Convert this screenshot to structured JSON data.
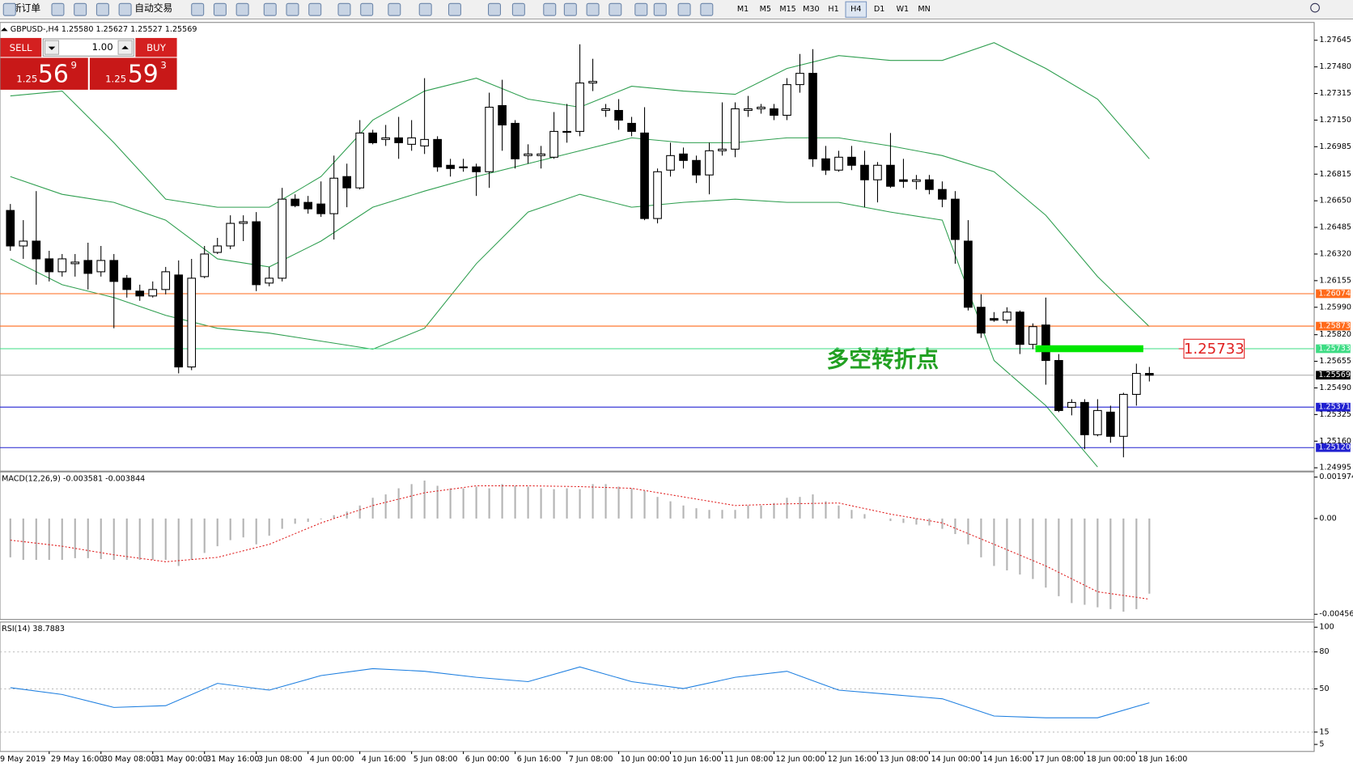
{
  "toolbar": {
    "new_order": "新订单",
    "auto_trading": "自动交易",
    "timeframes": [
      "M1",
      "M5",
      "M15",
      "M30",
      "H1",
      "H4",
      "D1",
      "W1",
      "MN"
    ],
    "active_timeframe": "H4"
  },
  "chart_header": "GBPUSD-,H4  1.25580 1.25627 1.25527 1.25569",
  "trade_panel": {
    "sell": "SELL",
    "buy": "BUY",
    "lots": "1.00",
    "sell_price": {
      "big": "1.25",
      "pips": "56",
      "point": "9"
    },
    "buy_price": {
      "big": "1.25",
      "pips": "59",
      "point": "3"
    }
  },
  "time_labels": [
    "9 May 2019",
    "29 May 16:00",
    "30 May 08:00",
    "31 May 00:00",
    "31 May 16:00",
    "3 Jun 08:00",
    "4 Jun 00:00",
    "4 Jun 16:00",
    "5 Jun 08:00",
    "6 Jun 00:00",
    "6 Jun 16:00",
    "7 Jun 08:00",
    "10 Jun 00:00",
    "10 Jun 16:00",
    "11 Jun 08:00",
    "12 Jun 00:00",
    "12 Jun 16:00",
    "13 Jun 08:00",
    "14 Jun 00:00",
    "14 Jun 16:00",
    "17 Jun 08:00",
    "18 Jun 00:00",
    "18 Jun 16:00"
  ],
  "chart_data": [
    {
      "type": "candlestick",
      "open": [
        1.2659,
        1.2637,
        1.264,
        1.2629,
        1.2621,
        1.2626,
        1.2628,
        1.2621,
        1.2628,
        1.2617,
        1.2609,
        1.2606,
        1.261,
        1.2619,
        1.2562,
        1.2618,
        1.2633,
        1.2637,
        1.2651,
        1.2652,
        1.2614,
        1.2617,
        1.2666,
        1.2664,
        1.2663,
        1.2657,
        1.268,
        1.2673,
        1.2707,
        1.2703,
        1.2704,
        1.27,
        1.2699,
        1.2703,
        1.2687,
        1.2686,
        1.2686,
        1.2683,
        1.2724,
        1.2713,
        1.2693,
        1.2693,
        1.2692,
        1.2708,
        1.2708,
        1.2738,
        1.2721,
        1.2721,
        1.2713,
        1.2707,
        1.2654,
        1.2684,
        1.2694,
        1.269,
        1.2681,
        1.2696,
        1.2697,
        1.2721,
        1.2722,
        1.2722,
        1.2718,
        1.2737,
        1.2744,
        1.2691,
        1.2684,
        1.2692,
        1.2687,
        1.2678,
        1.2687,
        1.2678,
        1.2677,
        1.2678,
        1.2672,
        1.2666,
        1.264,
        1.2599,
        1.2592,
        1.2591,
        1.2596,
        1.2576,
        1.2588,
        1.2566,
        1.2537,
        1.254,
        1.252,
        1.2534,
        1.2519,
        1.2545,
        1.2558
      ],
      "high": [
        1.2663,
        1.2653,
        1.2671,
        1.2634,
        1.2632,
        1.2632,
        1.2639,
        1.2637,
        1.2632,
        1.2619,
        1.2613,
        1.2615,
        1.2624,
        1.2628,
        1.2629,
        1.2637,
        1.2642,
        1.2656,
        1.2656,
        1.2658,
        1.2624,
        1.2673,
        1.2669,
        1.2668,
        1.2677,
        1.2693,
        1.2688,
        1.2715,
        1.2709,
        1.2712,
        1.2717,
        1.2715,
        1.2741,
        1.2705,
        1.2691,
        1.2691,
        1.2688,
        1.2732,
        1.274,
        1.2715,
        1.27,
        1.2699,
        1.272,
        1.2725,
        1.2762,
        1.2753,
        1.2725,
        1.2728,
        1.2717,
        1.2723,
        1.2685,
        1.2701,
        1.2698,
        1.2693,
        1.2701,
        1.2726,
        1.2726,
        1.273,
        1.2725,
        1.2725,
        1.2741,
        1.2756,
        1.2759,
        1.2699,
        1.2696,
        1.2699,
        1.2696,
        1.2689,
        1.2707,
        1.2691,
        1.2681,
        1.2681,
        1.2677,
        1.2671,
        1.2653,
        1.2607,
        1.2596,
        1.2599,
        1.2597,
        1.2589,
        1.2605,
        1.257,
        1.2542,
        1.2542,
        1.2542,
        1.2538,
        1.2546,
        1.2564,
        1.2562
      ],
      "low": [
        1.2634,
        1.2629,
        1.2613,
        1.2615,
        1.2618,
        1.2618,
        1.261,
        1.2618,
        1.2586,
        1.2605,
        1.2603,
        1.2605,
        1.2607,
        1.2558,
        1.256,
        1.2617,
        1.2632,
        1.2635,
        1.264,
        1.2609,
        1.2612,
        1.2615,
        1.2661,
        1.2657,
        1.2655,
        1.2641,
        1.2661,
        1.2672,
        1.27,
        1.2699,
        1.2691,
        1.2696,
        1.2694,
        1.2683,
        1.268,
        1.2683,
        1.2668,
        1.2673,
        1.2696,
        1.2685,
        1.2688,
        1.2685,
        1.2691,
        1.2701,
        1.2705,
        1.2733,
        1.2717,
        1.2709,
        1.2705,
        1.2653,
        1.2651,
        1.268,
        1.2685,
        1.2676,
        1.2669,
        1.2693,
        1.2692,
        1.2717,
        1.2719,
        1.2715,
        1.2715,
        1.2732,
        1.2686,
        1.2681,
        1.2683,
        1.2684,
        1.2661,
        1.2664,
        1.2673,
        1.2673,
        1.2672,
        1.2669,
        1.2661,
        1.2626,
        1.2597,
        1.258,
        1.259,
        1.2589,
        1.257,
        1.2573,
        1.2551,
        1.2534,
        1.2532,
        1.2511,
        1.2519,
        1.2515,
        1.2506,
        1.2538,
        1.2553
      ],
      "close": [
        1.2637,
        1.264,
        1.2629,
        1.2621,
        1.2629,
        1.2627,
        1.262,
        1.2628,
        1.2615,
        1.261,
        1.2606,
        1.261,
        1.2621,
        1.2562,
        1.2617,
        1.2632,
        1.2637,
        1.2651,
        1.2652,
        1.2613,
        1.2617,
        1.2666,
        1.2662,
        1.266,
        1.2657,
        1.2679,
        1.2673,
        1.2707,
        1.2701,
        1.2704,
        1.2701,
        1.2704,
        1.2703,
        1.2686,
        1.2685,
        1.2686,
        1.2683,
        1.2723,
        1.2712,
        1.2691,
        1.2694,
        1.2694,
        1.2708,
        1.2708,
        1.2738,
        1.2739,
        1.2722,
        1.2715,
        1.2708,
        1.2654,
        1.2683,
        1.2693,
        1.269,
        1.2681,
        1.2696,
        1.2697,
        1.2722,
        1.2722,
        1.2723,
        1.2718,
        1.2737,
        1.2744,
        1.2691,
        1.2684,
        1.2692,
        1.2687,
        1.2678,
        1.2687,
        1.2674,
        1.2677,
        1.2678,
        1.2672,
        1.2666,
        1.2641,
        1.2599,
        1.2583,
        1.2591,
        1.2596,
        1.2576,
        1.2587,
        1.2566,
        1.2535,
        1.254,
        1.252,
        1.2535,
        1.2519,
        1.2545,
        1.2558,
        1.25569
      ],
      "bands": {
        "x": [
          0,
          4,
          8,
          12,
          16,
          20,
          24,
          28,
          32,
          36,
          40,
          44,
          48,
          52,
          56,
          60,
          64,
          68,
          72,
          76,
          80,
          84,
          88
        ],
        "color": "#2e9e4f",
        "series": [
          {
            "values": [
              1.273,
              1.2733,
              1.2701,
              1.2666,
              1.2661,
              1.2661,
              1.268,
              1.2715,
              1.2733,
              1.2741,
              1.2728,
              1.2723,
              1.2736,
              1.2733,
              1.2731,
              1.2747,
              1.2755,
              1.2752,
              1.2752,
              1.2763,
              1.2747,
              1.2728,
              1.2691
            ]
          },
          {
            "values": [
              1.268,
              1.2669,
              1.2664,
              1.2653,
              1.2629,
              1.2624,
              1.264,
              1.2661,
              1.2671,
              1.268,
              1.2688,
              1.2696,
              1.2704,
              1.2701,
              1.2701,
              1.2704,
              1.2704,
              1.2699,
              1.2693,
              1.2683,
              1.2656,
              1.2618,
              1.2587
            ]
          },
          {
            "values": [
              1.2629,
              1.2613,
              1.2605,
              1.2594,
              1.2586,
              1.2583,
              1.2578,
              1.2573,
              1.2586,
              1.2626,
              1.2658,
              1.2669,
              1.2661,
              1.2664,
              1.2666,
              1.2664,
              1.2664,
              1.2658,
              1.2653,
              1.2566,
              1.2538,
              1.25,
              null
            ]
          }
        ]
      },
      "hlines": [
        1.26074,
        1.25873,
        1.25733,
        1.25569,
        1.25371,
        {
          "value": 1.2512,
          "label": "1.25120"
        }
      ],
      "hline_colors": [
        "#ff6a1a",
        "#ff6a1a",
        "#3ddc84",
        "#000000",
        "#2020d0",
        "#2020d0"
      ],
      "pivot": {
        "value": 1.25733,
        "label": "多空转折点",
        "color": "#00e600"
      },
      "ylim": [
        1.2498,
        1.2775
      ],
      "yticks": [
        1.27645,
        {
          "value": 1.2748,
          "label": "1.27480"
        },
        1.27315,
        {
          "value": 1.2715,
          "label": "1.27150"
        },
        1.26985,
        1.26815,
        {
          "value": 1.2665,
          "label": "1.26650"
        },
        1.26485,
        {
          "value": 1.2632,
          "label": "1.26320"
        },
        1.26155,
        {
          "value": 1.2599,
          "label": "1.25990"
        },
        {
          "value": 1.2582,
          "label": "1.25820"
        },
        1.25655,
        {
          "value": 1.2549,
          "label": "1.25490"
        },
        1.25325,
        {
          "value": 1.2516,
          "label": "1.25160"
        },
        1.24995
      ]
    },
    {
      "type": "macd",
      "title": "MACD(12,26,9) -0.003581 -0.003844",
      "color": "#b4b4b4",
      "signal_color": "#e02020",
      "values": [
        -0.00185,
        -0.00197,
        -0.00197,
        -0.00197,
        -0.00197,
        -0.00189,
        -0.00189,
        -0.00193,
        -0.00197,
        -0.00197,
        -0.00197,
        -0.00197,
        -0.00197,
        -0.00226,
        -0.00197,
        -0.00164,
        -0.00132,
        -0.00103,
        -0.0009,
        -0.00123,
        -0.00082,
        -0.00049,
        -0.00025,
        -0.00016,
        -4e-05,
        0.00016,
        0.00033,
        0.00062,
        0.00099,
        0.00115,
        0.00144,
        0.00164,
        0.00181,
        0.00156,
        0.00144,
        0.00144,
        0.00152,
        0.00144,
        0.00164,
        0.00156,
        0.00152,
        0.00144,
        0.0014,
        0.00144,
        0.0014,
        0.00164,
        0.00164,
        0.00152,
        0.00144,
        0.00132,
        0.00103,
        0.00082,
        0.00062,
        0.00049,
        0.00041,
        0.00041,
        0.00041,
        0.00062,
        0.00062,
        0.00074,
        0.00099,
        0.00103,
        0.00115,
        0.00082,
        0.00062,
        0.00041,
        0.00021,
        0,
        -0.00012,
        -0.00021,
        -0.00029,
        -0.00033,
        -0.00049,
        -0.00074,
        -0.00123,
        -0.00185,
        -0.00226,
        -0.00247,
        -0.00267,
        -0.00288,
        -0.00329,
        -0.0037,
        -0.00403,
        -0.00411,
        -0.00423,
        -0.00432,
        -0.00444,
        -0.00432,
        -0.003581
      ],
      "signal_x": [
        0,
        4,
        8,
        12,
        16,
        20,
        24,
        28,
        32,
        36,
        40,
        44,
        48,
        52,
        56,
        60,
        64,
        68,
        72,
        76,
        80,
        84,
        88
      ],
      "signal": [
        -0.00103,
        -0.00132,
        -0.00173,
        -0.00206,
        -0.00185,
        -0.00123,
        -0.00021,
        0.00062,
        0.00123,
        0.00156,
        0.00156,
        0.00152,
        0.00144,
        0.00103,
        0.00062,
        0.0007,
        0.00074,
        0.00021,
        -0.00021,
        -0.00123,
        -0.00226,
        -0.00349,
        -0.003844
      ],
      "ylim": [
        -0.004564,
        0.001974
      ],
      "yticks": [
        0.001974,
        {
          "value": 0,
          "label": "0.00"
        },
        -0.004564
      ]
    },
    {
      "type": "line",
      "title": "RSI(14) 38.7883",
      "color": "#1e7fe0",
      "x": [
        0,
        4,
        8,
        12,
        16,
        20,
        24,
        28,
        32,
        36,
        40,
        44,
        48,
        52,
        56,
        60,
        64,
        68,
        72,
        76,
        80,
        84,
        88
      ],
      "values": [
        51.0,
        45.5,
        35.0,
        36.4,
        54.5,
        49.0,
        60.8,
        66.4,
        64.3,
        59.4,
        55.9,
        67.8,
        55.9,
        50.3,
        59.4,
        64.3,
        49.0,
        45.5,
        42.0,
        28.0,
        26.6,
        26.6,
        38.7883
      ],
      "levels": [
        80,
        50,
        15
      ],
      "ylim": [
        0,
        100
      ],
      "yticks": [
        100,
        80,
        50,
        15,
        5
      ]
    }
  ]
}
